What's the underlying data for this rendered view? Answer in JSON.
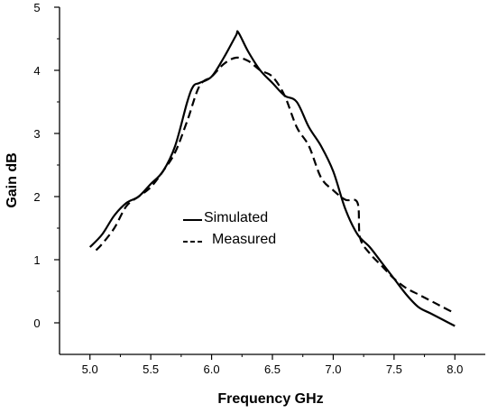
{
  "chart_data": {
    "type": "line",
    "title": "",
    "xlabel": "Frequency GHz",
    "ylabel": "Gain dB",
    "xlim": [
      4.75,
      8.25
    ],
    "ylim": [
      -0.5,
      5
    ],
    "xticks": [
      5.0,
      5.5,
      6.0,
      6.5,
      7.0,
      7.5,
      8.0
    ],
    "xtick_labels": [
      "5.0",
      "5.5",
      "6.0",
      "6.5",
      "7.0",
      "7.5",
      "8.0"
    ],
    "yticks": [
      0,
      1,
      2,
      3,
      4,
      5
    ],
    "ytick_labels": [
      "0",
      "1",
      "2",
      "3",
      "4",
      "5"
    ],
    "grid": false,
    "legend_position": "center-left",
    "series": [
      {
        "name": "Simulated",
        "style": "solid",
        "color": "#000000",
        "x": [
          5.0,
          5.1,
          5.2,
          5.3,
          5.4,
          5.5,
          5.6,
          5.7,
          5.8,
          5.85,
          5.9,
          6.0,
          6.1,
          6.2,
          6.22,
          6.3,
          6.4,
          6.5,
          6.6,
          6.7,
          6.8,
          6.9,
          7.0,
          7.1,
          7.2,
          7.3,
          7.4,
          7.5,
          7.6,
          7.7,
          7.8,
          7.9,
          8.0
        ],
        "y": [
          1.2,
          1.4,
          1.7,
          1.9,
          2.0,
          2.2,
          2.4,
          2.8,
          3.5,
          3.75,
          3.8,
          3.9,
          4.2,
          4.55,
          4.6,
          4.3,
          4.0,
          3.8,
          3.6,
          3.5,
          3.1,
          2.8,
          2.4,
          1.8,
          1.4,
          1.2,
          0.95,
          0.7,
          0.45,
          0.25,
          0.15,
          0.05,
          -0.05
        ]
      },
      {
        "name": "Measured",
        "style": "dashed",
        "color": "#000000",
        "x": [
          5.05,
          5.1,
          5.2,
          5.3,
          5.4,
          5.5,
          5.6,
          5.7,
          5.8,
          5.9,
          6.0,
          6.1,
          6.2,
          6.3,
          6.4,
          6.5,
          6.6,
          6.7,
          6.8,
          6.9,
          7.0,
          7.1,
          7.2,
          7.22,
          7.3,
          7.4,
          7.5,
          7.6,
          7.7,
          7.8,
          7.9,
          8.0
        ],
        "y": [
          1.15,
          1.25,
          1.5,
          1.85,
          2.0,
          2.15,
          2.4,
          2.7,
          3.2,
          3.75,
          3.9,
          4.1,
          4.2,
          4.15,
          4.0,
          3.9,
          3.6,
          3.1,
          2.8,
          2.3,
          2.1,
          1.95,
          1.9,
          1.35,
          1.1,
          0.9,
          0.7,
          0.55,
          0.45,
          0.35,
          0.25,
          0.15
        ]
      }
    ]
  }
}
